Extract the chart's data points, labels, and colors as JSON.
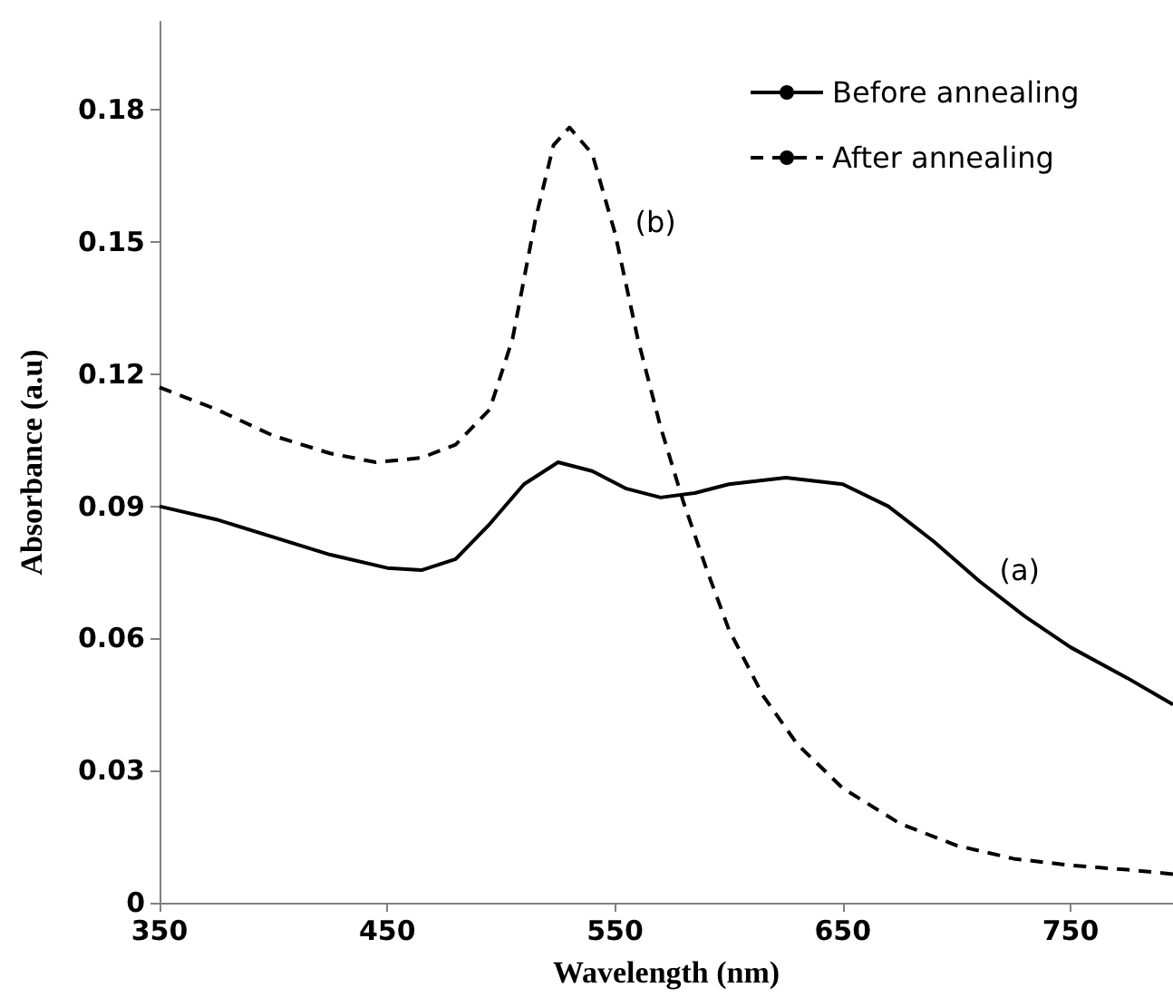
{
  "chart_data": {
    "type": "line",
    "xlabel": "Wavelength (nm)",
    "ylabel": "Absorbance (a.u)",
    "xlim": [
      350,
      795
    ],
    "xticks": [
      350,
      450,
      550,
      650,
      750
    ],
    "ylim": [
      0,
      0.2
    ],
    "yticks": [
      0,
      0.03,
      0.06,
      0.09,
      0.12,
      0.15,
      0.18
    ],
    "grid": false,
    "legend": "top right",
    "marker": "none",
    "annotations": [
      {
        "text": "(b)",
        "x": 550,
        "y": 0.152
      },
      {
        "text": "(a)",
        "x": 710,
        "y": 0.073
      }
    ],
    "series": [
      {
        "name": "Before annealing",
        "color": "#000000",
        "line_style": "solid",
        "x": [
          350,
          375,
          400,
          425,
          450,
          465,
          480,
          495,
          510,
          525,
          540,
          555,
          570,
          585,
          600,
          625,
          650,
          670,
          690,
          710,
          730,
          750,
          775,
          795
        ],
        "values": [
          0.09,
          0.087,
          0.083,
          0.079,
          0.076,
          0.0755,
          0.078,
          0.086,
          0.095,
          0.1,
          0.098,
          0.094,
          0.092,
          0.093,
          0.095,
          0.0965,
          0.095,
          0.09,
          0.082,
          0.073,
          0.065,
          0.058,
          0.051,
          0.045
        ]
      },
      {
        "name": "After annealing",
        "color": "#000000",
        "line_style": "dashed",
        "x": [
          350,
          375,
          400,
          425,
          445,
          465,
          480,
          495,
          505,
          515,
          523,
          530,
          540,
          550,
          560,
          570,
          580,
          590,
          600,
          615,
          630,
          650,
          675,
          700,
          725,
          750,
          775,
          795
        ],
        "values": [
          0.117,
          0.112,
          0.106,
          0.102,
          0.1,
          0.101,
          0.104,
          0.112,
          0.128,
          0.155,
          0.172,
          0.176,
          0.17,
          0.152,
          0.128,
          0.108,
          0.091,
          0.076,
          0.062,
          0.047,
          0.036,
          0.026,
          0.018,
          0.013,
          0.01,
          0.0085,
          0.0075,
          0.0065
        ]
      }
    ]
  }
}
